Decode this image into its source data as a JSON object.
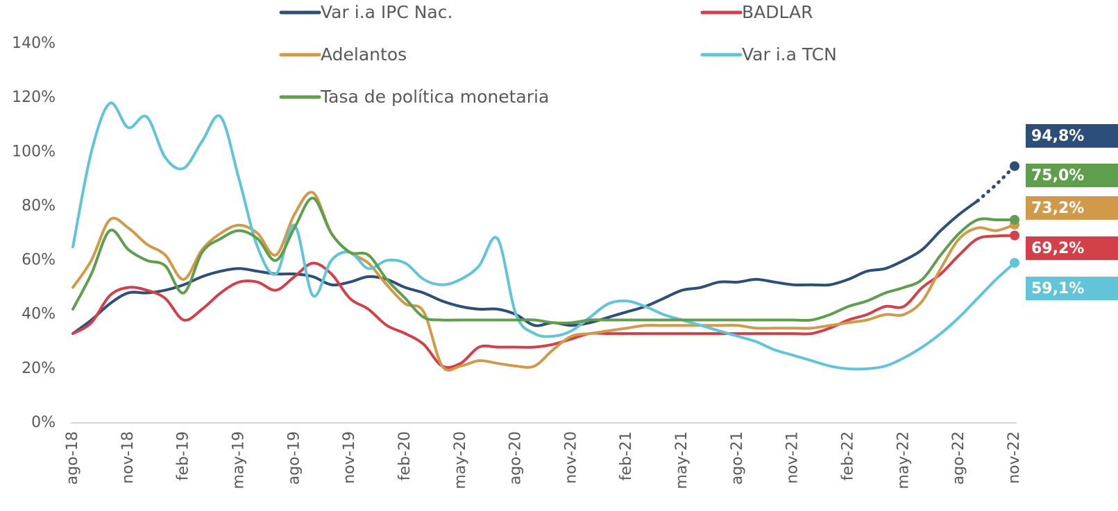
{
  "chart_data": {
    "type": "line",
    "categories": [
      "ago-18",
      null,
      null,
      "nov-18",
      null,
      null,
      "feb-19",
      null,
      null,
      "may-19",
      null,
      null,
      "ago-19",
      null,
      null,
      "nov-19",
      null,
      null,
      "feb-20",
      null,
      null,
      "may-20",
      null,
      null,
      "ago-20",
      null,
      null,
      "nov-20",
      null,
      null,
      "feb-21",
      null,
      null,
      "may-21",
      null,
      null,
      "ago-21",
      null,
      null,
      "nov-21",
      null,
      null,
      "feb-22",
      null,
      null,
      "may-22",
      null,
      null,
      "ago-22",
      null,
      null,
      "nov-22"
    ],
    "ylim": [
      0,
      140
    ],
    "yticks": [
      {
        "value": 0,
        "label": "0%"
      },
      {
        "value": 20,
        "label": "20%"
      },
      {
        "value": 40,
        "label": "40%"
      },
      {
        "value": 60,
        "label": "60%"
      },
      {
        "value": 80,
        "label": "80%"
      },
      {
        "value": 100,
        "label": "100%"
      },
      {
        "value": 120,
        "label": "120%"
      },
      {
        "value": 140,
        "label": "140%"
      }
    ],
    "grid": false,
    "legend": "top",
    "series": [
      {
        "name": "Var i.a IPC Nac.",
        "color": "#2e4e7a",
        "dotted_after": 49,
        "values": [
          33,
          38,
          44,
          48,
          48,
          49,
          51,
          54,
          56,
          57,
          56,
          55,
          55,
          54,
          51,
          52,
          54,
          53,
          50,
          48,
          45,
          43,
          42,
          42,
          40,
          36,
          37,
          36,
          37,
          39,
          41,
          43,
          46,
          49,
          50,
          52,
          52,
          53,
          52,
          51,
          51,
          51,
          53,
          56,
          57,
          60,
          64,
          71,
          77,
          82,
          88,
          94.8
        ],
        "value_labels": [
          null,
          null,
          null,
          null,
          null,
          null,
          null,
          null,
          null,
          null,
          null,
          null,
          null,
          null,
          null,
          null,
          null,
          null,
          null,
          null,
          null,
          null,
          null,
          null,
          null,
          null,
          null,
          null,
          null,
          null,
          null,
          null,
          null,
          null,
          null,
          null,
          null,
          null,
          null,
          null,
          null,
          null,
          null,
          null,
          null,
          null,
          null,
          null,
          null,
          null,
          null,
          "94,8%"
        ]
      },
      {
        "name": "BADLAR",
        "color": "#d2404a",
        "values": [
          33,
          37,
          47,
          50,
          49,
          46,
          38,
          42,
          48,
          52,
          52,
          49,
          54,
          59,
          55,
          46,
          42,
          36,
          33,
          29,
          21,
          22,
          28,
          28,
          28,
          28,
          29,
          31,
          33,
          33,
          33,
          33,
          33,
          33,
          33,
          33,
          33,
          33,
          33,
          33,
          33,
          35,
          38,
          40,
          43,
          43,
          50,
          55,
          62,
          68,
          69,
          69.2
        ],
        "value_labels": [
          null,
          null,
          null,
          null,
          null,
          null,
          null,
          null,
          null,
          null,
          null,
          null,
          null,
          null,
          null,
          null,
          null,
          null,
          null,
          null,
          null,
          null,
          null,
          null,
          null,
          null,
          null,
          null,
          null,
          null,
          null,
          null,
          null,
          null,
          null,
          null,
          null,
          null,
          null,
          null,
          null,
          null,
          null,
          null,
          null,
          null,
          null,
          null,
          null,
          null,
          null,
          "69,2%"
        ]
      },
      {
        "name": "Adelantos",
        "color": "#d19a4a",
        "values": [
          50,
          60,
          75,
          72,
          66,
          62,
          53,
          64,
          70,
          73,
          70,
          62,
          77,
          85,
          70,
          63,
          59,
          51,
          44,
          41,
          21,
          21,
          23,
          22,
          21,
          21,
          27,
          32,
          33,
          34,
          35,
          36,
          36,
          36,
          36,
          36,
          36,
          35,
          35,
          35,
          35,
          36,
          37,
          38,
          40,
          40,
          45,
          57,
          68,
          72,
          71,
          73.2
        ],
        "value_labels": [
          null,
          null,
          null,
          null,
          null,
          null,
          null,
          null,
          null,
          null,
          null,
          null,
          null,
          null,
          null,
          null,
          null,
          null,
          null,
          null,
          null,
          null,
          null,
          null,
          null,
          null,
          null,
          null,
          null,
          null,
          null,
          null,
          null,
          null,
          null,
          null,
          null,
          null,
          null,
          null,
          null,
          null,
          null,
          null,
          null,
          null,
          null,
          null,
          null,
          null,
          null,
          "73,2%"
        ]
      },
      {
        "name": "Var i.a TCN",
        "color": "#62c4d9",
        "values": [
          65,
          100,
          118,
          109,
          113,
          98,
          94,
          104,
          113,
          90,
          65,
          55,
          73,
          47,
          60,
          63,
          57,
          60,
          59,
          53,
          51,
          53,
          58,
          68,
          40,
          33,
          32,
          34,
          39,
          44,
          45,
          43,
          40,
          38,
          36,
          34,
          32,
          30,
          27,
          25,
          23,
          21,
          20,
          20,
          21,
          24,
          28,
          33,
          39,
          46,
          53,
          59.1
        ],
        "value_labels": [
          null,
          null,
          null,
          null,
          null,
          null,
          null,
          null,
          null,
          null,
          null,
          null,
          null,
          null,
          null,
          null,
          null,
          null,
          null,
          null,
          null,
          null,
          null,
          null,
          null,
          null,
          null,
          null,
          null,
          null,
          null,
          null,
          null,
          null,
          null,
          null,
          null,
          null,
          null,
          null,
          null,
          null,
          null,
          null,
          null,
          null,
          null,
          null,
          null,
          null,
          null,
          "59,1%"
        ]
      },
      {
        "name": "Tasa de política monetaria",
        "color": "#5e9e4c",
        "values": [
          42,
          55,
          71,
          64,
          60,
          58,
          48,
          63,
          68,
          71,
          68,
          60,
          72,
          83,
          70,
          63,
          62,
          53,
          46,
          39,
          38,
          38,
          38,
          38,
          38,
          38,
          37,
          37,
          38,
          38,
          38,
          38,
          38,
          38,
          38,
          38,
          38,
          38,
          38,
          38,
          38,
          40,
          43,
          45,
          48,
          50,
          53,
          62,
          70,
          75,
          75,
          75.0
        ],
        "value_labels": [
          null,
          null,
          null,
          null,
          null,
          null,
          null,
          null,
          null,
          null,
          null,
          null,
          null,
          null,
          null,
          null,
          null,
          null,
          null,
          null,
          null,
          null,
          null,
          null,
          null,
          null,
          null,
          null,
          null,
          null,
          null,
          null,
          null,
          null,
          null,
          null,
          null,
          null,
          null,
          null,
          null,
          null,
          null,
          null,
          null,
          null,
          null,
          null,
          null,
          null,
          null,
          "75,0%"
        ]
      }
    ]
  }
}
